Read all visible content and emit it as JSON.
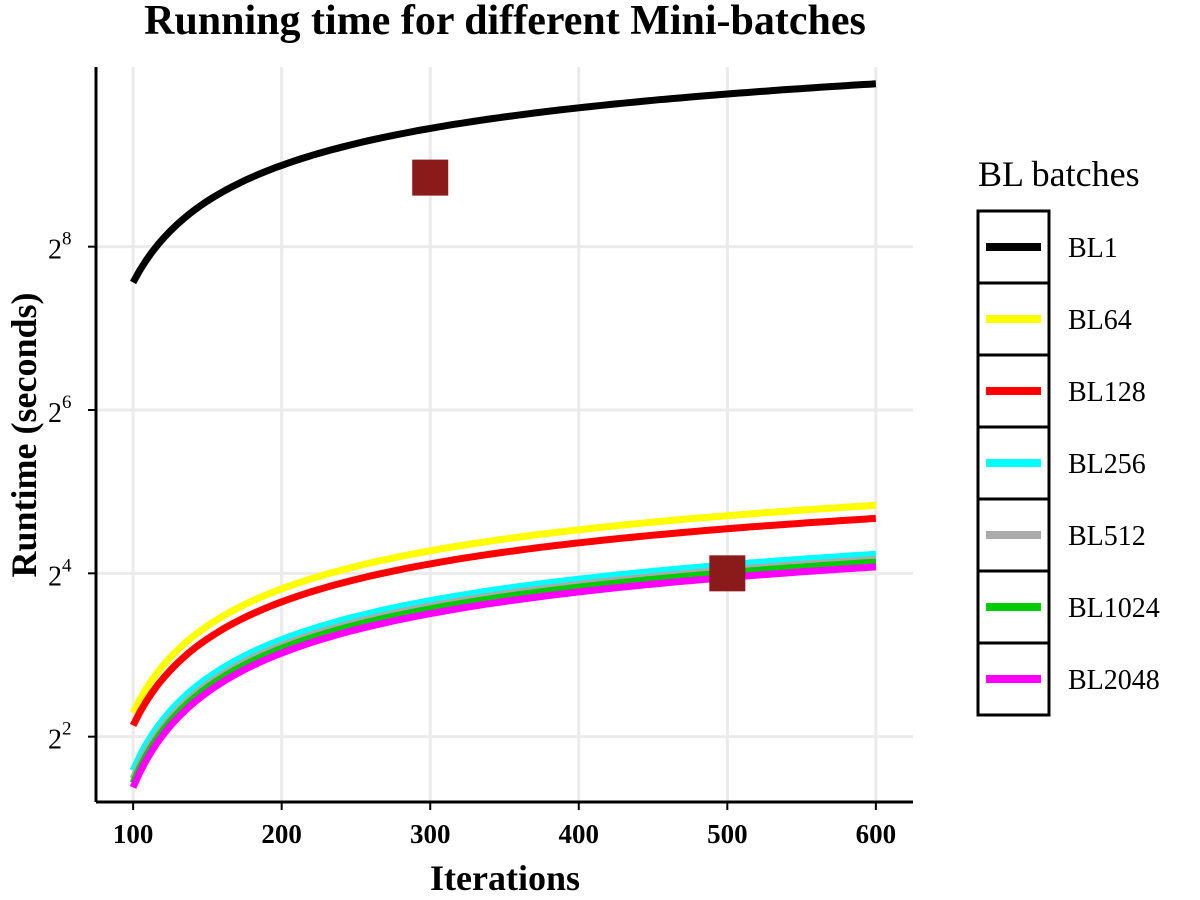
{
  "chart_data": {
    "type": "line",
    "title": "Running time for different Mini-batches",
    "xlabel": "Iterations",
    "ylabel": "Runtime (seconds)",
    "x_scale": "linear",
    "y_scale": "log2",
    "xlim": [
      75,
      625
    ],
    "ylim_log2": [
      1.2,
      10.2
    ],
    "x_ticks": [
      100,
      200,
      300,
      400,
      500,
      600
    ],
    "x_tick_labels": [
      "100",
      "200",
      "300",
      "400",
      "500",
      "600"
    ],
    "y_ticks": [
      {
        "value": 4,
        "base": "2",
        "exp": "2"
      },
      {
        "value": 16,
        "base": "2",
        "exp": "4"
      },
      {
        "value": 64,
        "base": "2",
        "exp": "6"
      },
      {
        "value": 256,
        "base": "2",
        "exp": "8"
      }
    ],
    "grid": true,
    "legend": {
      "title": "BL batches",
      "position": "right"
    },
    "x": [
      100,
      600
    ],
    "series": [
      {
        "name": "BL1",
        "color": "#000000",
        "values": [
          189,
          1020
        ]
      },
      {
        "name": "BL64",
        "color": "#ffff00",
        "values": [
          4.9,
          28.5
        ]
      },
      {
        "name": "BL128",
        "color": "#ff0000",
        "values": [
          4.4,
          25.5
        ]
      },
      {
        "name": "BL256",
        "color": "#00ffff",
        "values": [
          3.0,
          18.8
        ]
      },
      {
        "name": "BL512",
        "color": "#aaaaaa",
        "values": [
          2.8,
          18.0
        ]
      },
      {
        "name": "BL1024",
        "color": "#00cc00",
        "values": [
          2.7,
          17.6
        ]
      },
      {
        "name": "BL2048",
        "color": "#ff00ff",
        "values": [
          2.6,
          16.9
        ]
      }
    ],
    "markers": [
      {
        "series": "BL1",
        "x": 300,
        "y": 460,
        "color": "#8b1a1a",
        "shape": "square"
      },
      {
        "series": "BL2048",
        "x": 500,
        "y": 16,
        "color": "#8b1a1a",
        "shape": "square"
      }
    ]
  }
}
